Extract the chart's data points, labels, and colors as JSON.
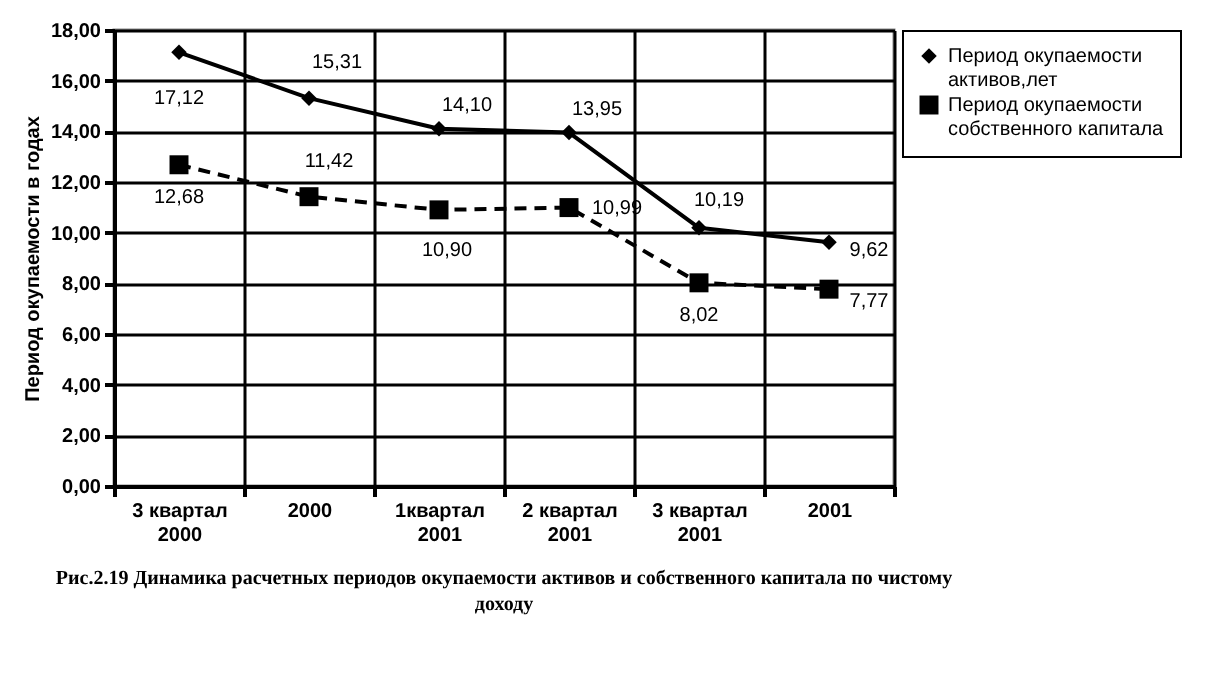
{
  "chart_data": {
    "type": "line",
    "title": "Рис.2.19 Динамика расчетных периодов окупаемости активов и собственного капитала по чистому доходу",
    "ylabel": "Период окупаемости в годах",
    "categories": [
      "3 квартал 2000",
      "2000",
      "1квартал 2001",
      "2 квартал 2001",
      "3 квартал 2001",
      "2001"
    ],
    "series": [
      {
        "name": "Период окупаемости активов,лет",
        "color": "#000000",
        "marker": "diamond",
        "line_style": "solid",
        "values": [
          17.12,
          15.31,
          14.1,
          13.95,
          10.19,
          9.62
        ],
        "value_labels": [
          "17,12",
          "15,31",
          "14,10",
          "13,95",
          "10,19",
          "9,62"
        ]
      },
      {
        "name": "Период окупаемости собственного капитала",
        "color": "#000000",
        "marker": "square",
        "line_style": "dashed",
        "values": [
          12.68,
          11.42,
          10.9,
          10.99,
          8.02,
          7.77
        ],
        "value_labels": [
          "12,68",
          "11,42",
          "10,90",
          "10,99",
          "8,02",
          "7,77"
        ]
      }
    ],
    "ylim": [
      0,
      18
    ],
    "yticks": [
      {
        "value": 0,
        "label": "0,00"
      },
      {
        "value": 2,
        "label": "2,00"
      },
      {
        "value": 4,
        "label": "4,00"
      },
      {
        "value": 6,
        "label": "6,00"
      },
      {
        "value": 8,
        "label": "8,00"
      },
      {
        "value": 10,
        "label": "10,00"
      },
      {
        "value": 12,
        "label": "12,00"
      },
      {
        "value": 14,
        "label": "14,00"
      },
      {
        "value": 16,
        "label": "16,00"
      },
      {
        "value": 18,
        "label": "18,00"
      }
    ],
    "grid": true,
    "legend": "top right"
  }
}
